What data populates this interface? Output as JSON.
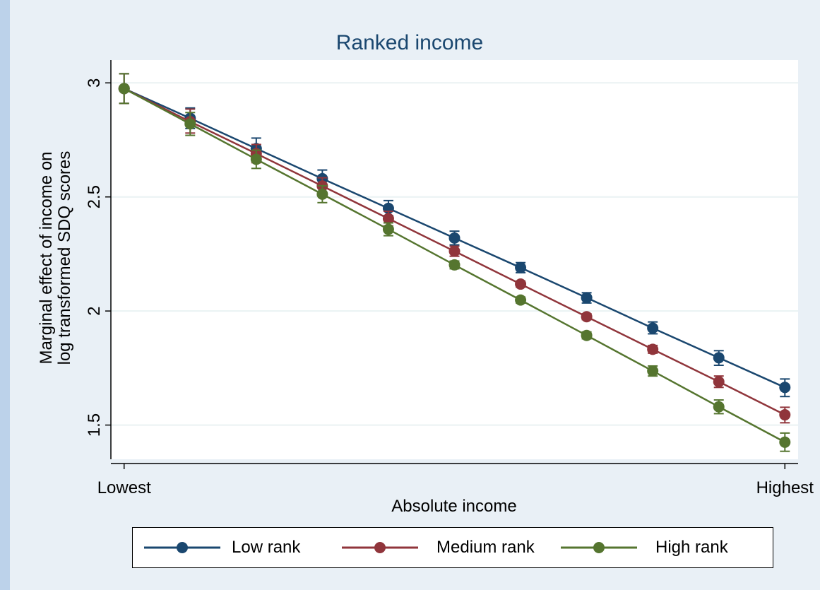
{
  "chart_data": {
    "type": "line",
    "title": "Ranked income",
    "xlabel": "Absolute income",
    "ylabel": [
      "Marginal effect of income on",
      "log transformed SDQ scores"
    ],
    "x_tick_labels": [
      "Lowest",
      "Highest"
    ],
    "x": [
      1,
      2,
      3,
      4,
      5,
      6,
      7,
      8,
      9,
      10,
      11
    ],
    "xlim": [
      0.8,
      11.2
    ],
    "ylim": [
      1.35,
      3.1
    ],
    "y_ticks": [
      1.5,
      2,
      2.5,
      3
    ],
    "y_tick_labels": [
      "1.5",
      "2",
      "2.5",
      "3"
    ],
    "grid": true,
    "legend_position": "bottom",
    "series": [
      {
        "name": "Low rank",
        "color": "#1a476f",
        "values": [
          2.975,
          2.845,
          2.712,
          2.58,
          2.45,
          2.32,
          2.19,
          2.058,
          1.925,
          1.795,
          1.665
        ],
        "ci_low": [
          2.91,
          2.8,
          2.67,
          2.545,
          2.418,
          2.29,
          2.168,
          2.035,
          1.9,
          1.762,
          1.625
        ],
        "ci_high": [
          3.04,
          2.89,
          2.758,
          2.618,
          2.484,
          2.35,
          2.212,
          2.08,
          1.952,
          1.826,
          1.702
        ]
      },
      {
        "name": "Medium rank",
        "color": "#90353b",
        "values": [
          2.975,
          2.83,
          2.69,
          2.548,
          2.405,
          2.262,
          2.118,
          1.975,
          1.832,
          1.69,
          1.545
        ],
        "ci_low": [
          2.91,
          2.78,
          2.65,
          2.512,
          2.373,
          2.24,
          2.105,
          1.962,
          1.815,
          1.665,
          1.51
        ],
        "ci_high": [
          3.04,
          2.885,
          2.73,
          2.584,
          2.437,
          2.284,
          2.131,
          1.988,
          1.849,
          1.715,
          1.578
        ]
      },
      {
        "name": "High rank",
        "color": "#55752f",
        "values": [
          2.975,
          2.82,
          2.665,
          2.512,
          2.358,
          2.202,
          2.048,
          1.893,
          1.737,
          1.58,
          1.425
        ],
        "ci_low": [
          2.91,
          2.77,
          2.625,
          2.475,
          2.33,
          2.185,
          2.035,
          1.878,
          1.715,
          1.55,
          1.385
        ],
        "ci_high": [
          3.04,
          2.87,
          2.705,
          2.549,
          2.386,
          2.219,
          2.061,
          1.908,
          1.759,
          1.61,
          1.465
        ]
      }
    ]
  }
}
